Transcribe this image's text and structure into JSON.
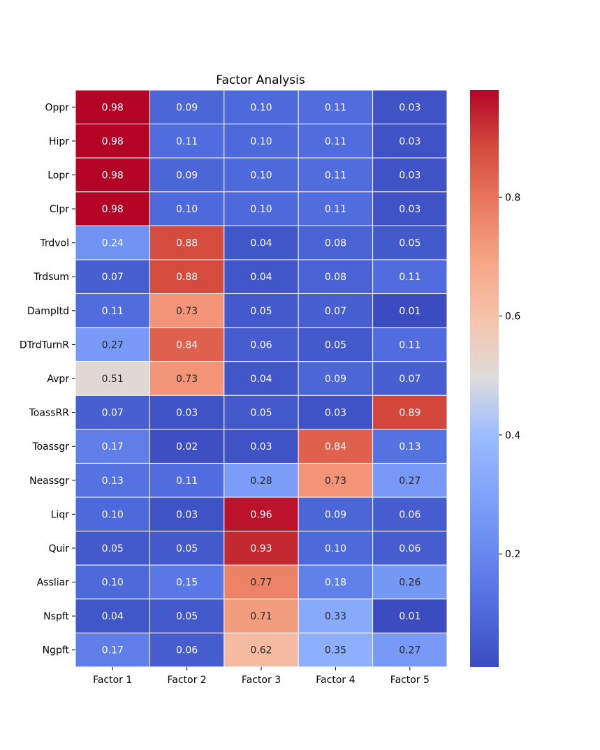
{
  "chart_data": {
    "type": "heatmap",
    "title": "Factor Analysis",
    "xlabel": "",
    "ylabel": "",
    "columns": [
      "Factor 1",
      "Factor 2",
      "Factor 3",
      "Factor 4",
      "Factor 5"
    ],
    "rows": [
      "Oppr",
      "Hipr",
      "Lopr",
      "Clpr",
      "Trdvol",
      "Trdsum",
      "Dampltd",
      "DTrdTurnR",
      "Avpr",
      "ToassRR",
      "Toassgr",
      "Neassgr",
      "Liqr",
      "Quir",
      "Assliar",
      "Nspft",
      "Ngpft"
    ],
    "values": [
      [
        0.98,
        0.09,
        0.1,
        0.11,
        0.03
      ],
      [
        0.98,
        0.11,
        0.1,
        0.11,
        0.03
      ],
      [
        0.98,
        0.09,
        0.1,
        0.11,
        0.03
      ],
      [
        0.98,
        0.1,
        0.1,
        0.11,
        0.03
      ],
      [
        0.24,
        0.88,
        0.04,
        0.08,
        0.05
      ],
      [
        0.07,
        0.88,
        0.04,
        0.08,
        0.11
      ],
      [
        0.11,
        0.73,
        0.05,
        0.07,
        0.01
      ],
      [
        0.27,
        0.84,
        0.06,
        0.05,
        0.11
      ],
      [
        0.51,
        0.73,
        0.04,
        0.09,
        0.07
      ],
      [
        0.07,
        0.03,
        0.05,
        0.03,
        0.89
      ],
      [
        0.17,
        0.02,
        0.03,
        0.84,
        0.13
      ],
      [
        0.13,
        0.11,
        0.28,
        0.73,
        0.27
      ],
      [
        0.1,
        0.03,
        0.96,
        0.09,
        0.06
      ],
      [
        0.05,
        0.05,
        0.93,
        0.1,
        0.06
      ],
      [
        0.1,
        0.15,
        0.77,
        0.18,
        0.26
      ],
      [
        0.04,
        0.05,
        0.71,
        0.33,
        0.01
      ],
      [
        0.17,
        0.06,
        0.62,
        0.35,
        0.27
      ]
    ],
    "colormap": "coolwarm",
    "vmin": 0.01,
    "vmax": 0.98,
    "colorbar_ticks": [
      0.2,
      0.4,
      0.6,
      0.8
    ],
    "colorbar_tick_labels": [
      "0.2",
      "0.4",
      "0.6",
      "0.8"
    ],
    "annotation_format": "0.00"
  }
}
